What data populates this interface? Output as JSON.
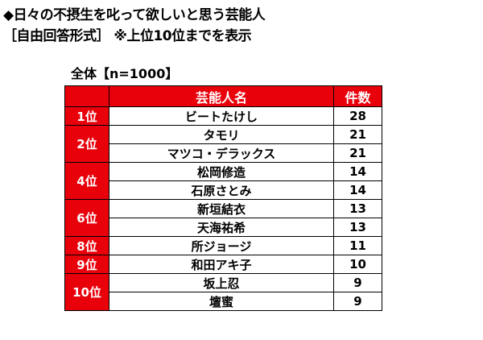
{
  "title": "◆日々の不摂生を叱って欲しいと思う芸能人",
  "subtitle": "［自由回答形式］ ※上位10位までを表示",
  "sample": "全体【n=1000】",
  "table": {
    "headers": {
      "name": "芸能人名",
      "count": "件数"
    },
    "groups": [
      {
        "rank": "1位",
        "rows": [
          {
            "name": "ビートたけし",
            "count": "28"
          }
        ]
      },
      {
        "rank": "2位",
        "rows": [
          {
            "name": "タモリ",
            "count": "21"
          },
          {
            "name": "マツコ・デラックス",
            "count": "21"
          }
        ]
      },
      {
        "rank": "4位",
        "rows": [
          {
            "name": "松岡修造",
            "count": "14"
          },
          {
            "name": "石原さとみ",
            "count": "14"
          }
        ]
      },
      {
        "rank": "6位",
        "rows": [
          {
            "name": "新垣結衣",
            "count": "13"
          },
          {
            "name": "天海祐希",
            "count": "13"
          }
        ]
      },
      {
        "rank": "8位",
        "rows": [
          {
            "name": "所ジョージ",
            "count": "11"
          }
        ]
      },
      {
        "rank": "9位",
        "rows": [
          {
            "name": "和田アキ子",
            "count": "10"
          }
        ]
      },
      {
        "rank": "10位",
        "rows": [
          {
            "name": "坂上忍",
            "count": "9"
          },
          {
            "name": "壇蜜",
            "count": "9"
          }
        ]
      }
    ]
  },
  "colors": {
    "header_bg": "#e8000b",
    "header_text": "#ffffff",
    "border": "#000000"
  }
}
